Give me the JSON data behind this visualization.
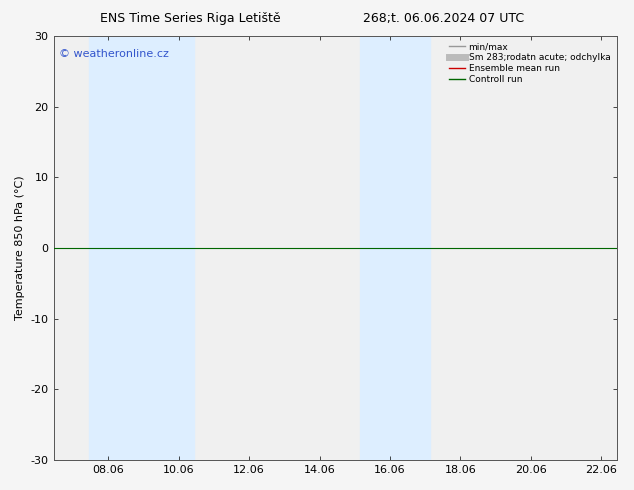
{
  "title_left": "ENS Time Series Riga Letiště",
  "title_right": "268;t. 06.06.2024 07 UTC",
  "ylabel": "Temperature 850 hPa (°C)",
  "watermark": "© weatheronline.cz",
  "watermark_color": "#3355cc",
  "ylim": [
    -30,
    30
  ],
  "yticks": [
    -30,
    -20,
    -10,
    0,
    10,
    20,
    30
  ],
  "xlim_start": 6.5,
  "xlim_end": 22.5,
  "xticks": [
    8.06,
    10.06,
    12.06,
    14.06,
    16.06,
    18.06,
    20.06,
    22.06
  ],
  "xtick_labels": [
    "08.06",
    "10.06",
    "12.06",
    "14.06",
    "16.06",
    "18.06",
    "20.06",
    "22.06"
  ],
  "shaded_bands": [
    {
      "xmin": 7.5,
      "xmax": 10.5,
      "color": "#ddeeff"
    },
    {
      "xmin": 15.2,
      "xmax": 17.2,
      "color": "#ddeeff"
    }
  ],
  "hline_y": 0,
  "hline_color": "#006600",
  "hline_linewidth": 0.8,
  "legend_entries": [
    {
      "label": "min/max",
      "color": "#999999",
      "lw": 1.0
    },
    {
      "label": "Sm 283;rodatn acute; odchylka",
      "color": "#bbbbbb",
      "lw": 5
    },
    {
      "label": "Ensemble mean run",
      "color": "#cc0000",
      "lw": 1.0
    },
    {
      "label": "Controll run",
      "color": "#006600",
      "lw": 1.0
    }
  ],
  "bg_color": "#f5f5f5",
  "plot_bg_color": "#f0f0f0",
  "spine_color": "#555555",
  "tick_color": "#000000",
  "font_size": 8,
  "title_font_size": 9
}
